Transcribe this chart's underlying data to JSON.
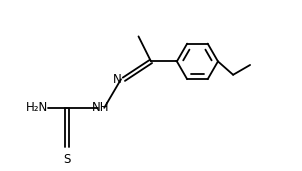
{
  "bg_color": "#ffffff",
  "line_color": "#000000",
  "text_color": "#000000",
  "line_width": 1.3,
  "font_size": 8.5,
  "figsize": [
    3.02,
    1.71
  ],
  "dpi": 100,
  "xlim": [
    -0.05,
    1.25
  ],
  "ylim": [
    -0.05,
    0.9
  ]
}
